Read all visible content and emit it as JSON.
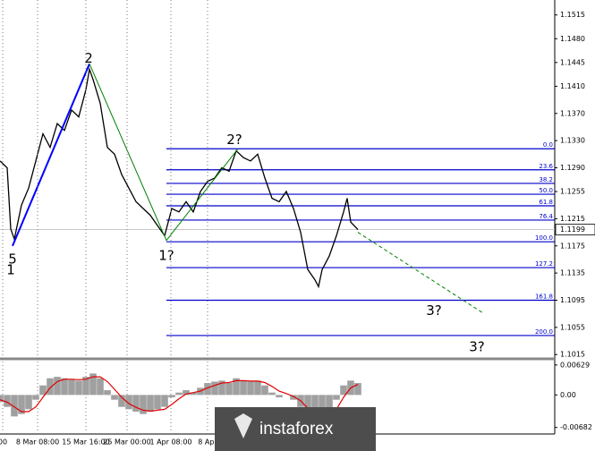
{
  "chart_data": [
    {
      "type": "line",
      "color": "#000000",
      "x": [
        0,
        2,
        3,
        4,
        6,
        8,
        10,
        12,
        14,
        16,
        18,
        20,
        22,
        24,
        25,
        26,
        28,
        30,
        32,
        34,
        36,
        38,
        40,
        42,
        44,
        46,
        48,
        50,
        52,
        54,
        56,
        58,
        60,
        62,
        64,
        66,
        68,
        70,
        72,
        74,
        76,
        78,
        80,
        82,
        84,
        86,
        88,
        89,
        90,
        92,
        94,
        96,
        97,
        98,
        100
      ],
      "values": [
        1.13,
        1.129,
        1.12,
        1.1185,
        1.1235,
        1.126,
        1.13,
        1.134,
        1.132,
        1.1355,
        1.1345,
        1.1375,
        1.1365,
        1.1405,
        1.1435,
        1.142,
        1.1385,
        1.132,
        1.131,
        1.128,
        1.126,
        1.124,
        1.123,
        1.122,
        1.1205,
        1.119,
        1.123,
        1.1225,
        1.124,
        1.1225,
        1.1255,
        1.127,
        1.1275,
        1.129,
        1.1285,
        1.1315,
        1.1305,
        1.13,
        1.131,
        1.1275,
        1.1245,
        1.124,
        1.1255,
        1.123,
        1.1195,
        1.114,
        1.1125,
        1.1115,
        1.114,
        1.116,
        1.119,
        1.1225,
        1.1245,
        1.121,
        1.1199
      ],
      "xlim": [
        0,
        155
      ],
      "ylim": [
        1.101,
        1.1537
      ],
      "yticks": [
        1.1515,
        {
          "value": 1.148,
          "label": "1.1480"
        },
        1.1445,
        {
          "value": 1.141,
          "label": "1.1410"
        },
        {
          "value": 1.137,
          "label": "1.1370"
        },
        {
          "value": 1.133,
          "label": "1.1330"
        },
        {
          "value": 1.129,
          "label": "1.1290"
        },
        1.1255,
        1.1215,
        1.1175,
        1.1135,
        1.1095,
        1.1055,
        1.1015
      ],
      "last_price": 1.1199,
      "fib_levels": {
        "color": "#0000cc",
        "labels": [
          "0.0",
          "23.6",
          "38.2",
          "50.0",
          "61.8",
          "76.4",
          "100.0",
          "127.2",
          "161.8",
          "200.0"
        ],
        "values": [
          1.1318,
          1.1287,
          1.1267,
          1.1251,
          1.1234,
          1.1213,
          1.1181,
          1.1143,
          1.1095,
          1.1043
        ]
      },
      "wave_lines": [
        {
          "color": "#0000ff",
          "x": [
            3.5,
            25
          ],
          "y": [
            1.1175,
            1.1443
          ]
        },
        {
          "color": "#008000",
          "x": [
            25,
            46.5,
            66.5
          ],
          "y": [
            1.1443,
            1.1183,
            1.1318
          ]
        },
        {
          "color": "#008000",
          "dashed": true,
          "x": [
            100,
            135
          ],
          "y": [
            1.1195,
            1.1076
          ]
        }
      ],
      "wave_labels": [
        {
          "text": "5",
          "color": "#008000",
          "x": 3.5,
          "y": 1.1155
        },
        {
          "text": "1",
          "color": "#0000ff",
          "x": 3,
          "y": 1.1139
        },
        {
          "text": "2",
          "color": "#0000ff",
          "x": 24.75,
          "y": 1.1451
        },
        {
          "text": "1?",
          "color": "#008000",
          "x": 46.5,
          "y": 1.116
        },
        {
          "text": "2?",
          "color": "#008000",
          "x": 65.5,
          "y": 1.1331
        },
        {
          "text": "3?",
          "color": "#008000",
          "x": 121.25,
          "y": 1.1079
        },
        {
          "text": "3?",
          "color": "#008000",
          "x": 133.25,
          "y": 1.1026
        }
      ]
    },
    {
      "type": "oscillator",
      "color": "#a0a0a0",
      "signal_color": "#e00000",
      "x": [
        0,
        2,
        4,
        6,
        8,
        10,
        12,
        14,
        16,
        18,
        20,
        22,
        24,
        26,
        28,
        30,
        32,
        34,
        36,
        38,
        40,
        42,
        44,
        46,
        48,
        50,
        52,
        54,
        56,
        58,
        60,
        62,
        64,
        66,
        68,
        70,
        72,
        74,
        76,
        78,
        80,
        82,
        84,
        86,
        88,
        90,
        92,
        94,
        96,
        98,
        100
      ],
      "values": [
        -0.0015,
        -0.0025,
        -0.0045,
        -0.004,
        -0.003,
        -0.001,
        0.002,
        0.0035,
        0.0038,
        0.0035,
        0.0032,
        0.003,
        0.0038,
        0.0045,
        0.0035,
        0.001,
        -0.001,
        -0.0025,
        -0.003,
        -0.0035,
        -0.004,
        -0.0035,
        -0.003,
        -0.0025,
        -0.0005,
        0.0005,
        0.001,
        0.0005,
        0.0015,
        0.0025,
        0.0028,
        0.003,
        0.0025,
        0.0035,
        0.003,
        0.0028,
        0.003,
        0.002,
        0.0005,
        -0.0005,
        0.0,
        -0.001,
        -0.0025,
        -0.0045,
        -0.0055,
        -0.005,
        -0.0035,
        -0.001,
        0.002,
        0.003,
        0.0025
      ],
      "signal": [
        -0.001,
        -0.0015,
        -0.0025,
        -0.0035,
        -0.0035,
        -0.0025,
        -0.0005,
        0.0015,
        0.0028,
        0.0033,
        0.0033,
        0.0032,
        0.0033,
        0.0038,
        0.0038,
        0.0028,
        0.0012,
        -0.0005,
        -0.0018,
        -0.0026,
        -0.0032,
        -0.0034,
        -0.0032,
        -0.003,
        -0.002,
        -0.0008,
        0.0002,
        0.0005,
        0.0008,
        0.0015,
        0.002,
        0.0025,
        0.0026,
        0.003,
        0.003,
        0.0029,
        0.0029,
        0.0026,
        0.0018,
        0.0008,
        0.0003,
        -0.0003,
        -0.0012,
        -0.0028,
        -0.0042,
        -0.0048,
        -0.0045,
        -0.003,
        -0.0005,
        0.0015,
        0.0022
      ],
      "xlim": [
        0,
        155
      ],
      "ylim": [
        -0.008,
        0.0072
      ],
      "yticks": [
        0.00629,
        {
          "value": 0,
          "label": "0.00"
        },
        -0.00682
      ],
      "xticks": [
        {
          "value": 0.75,
          "label": "00"
        },
        {
          "value": 10.5,
          "label": "8 Mar 08:00"
        },
        {
          "value": 24,
          "label": "15 Mar 16:00"
        },
        {
          "value": 35.5,
          "label": "25 Mar 00:00"
        },
        {
          "value": 47.75,
          "label": "1 Apr 08:00"
        },
        {
          "value": 58,
          "label": "8 Apr"
        }
      ],
      "grid": true
    }
  ],
  "watermark": "instaforex"
}
